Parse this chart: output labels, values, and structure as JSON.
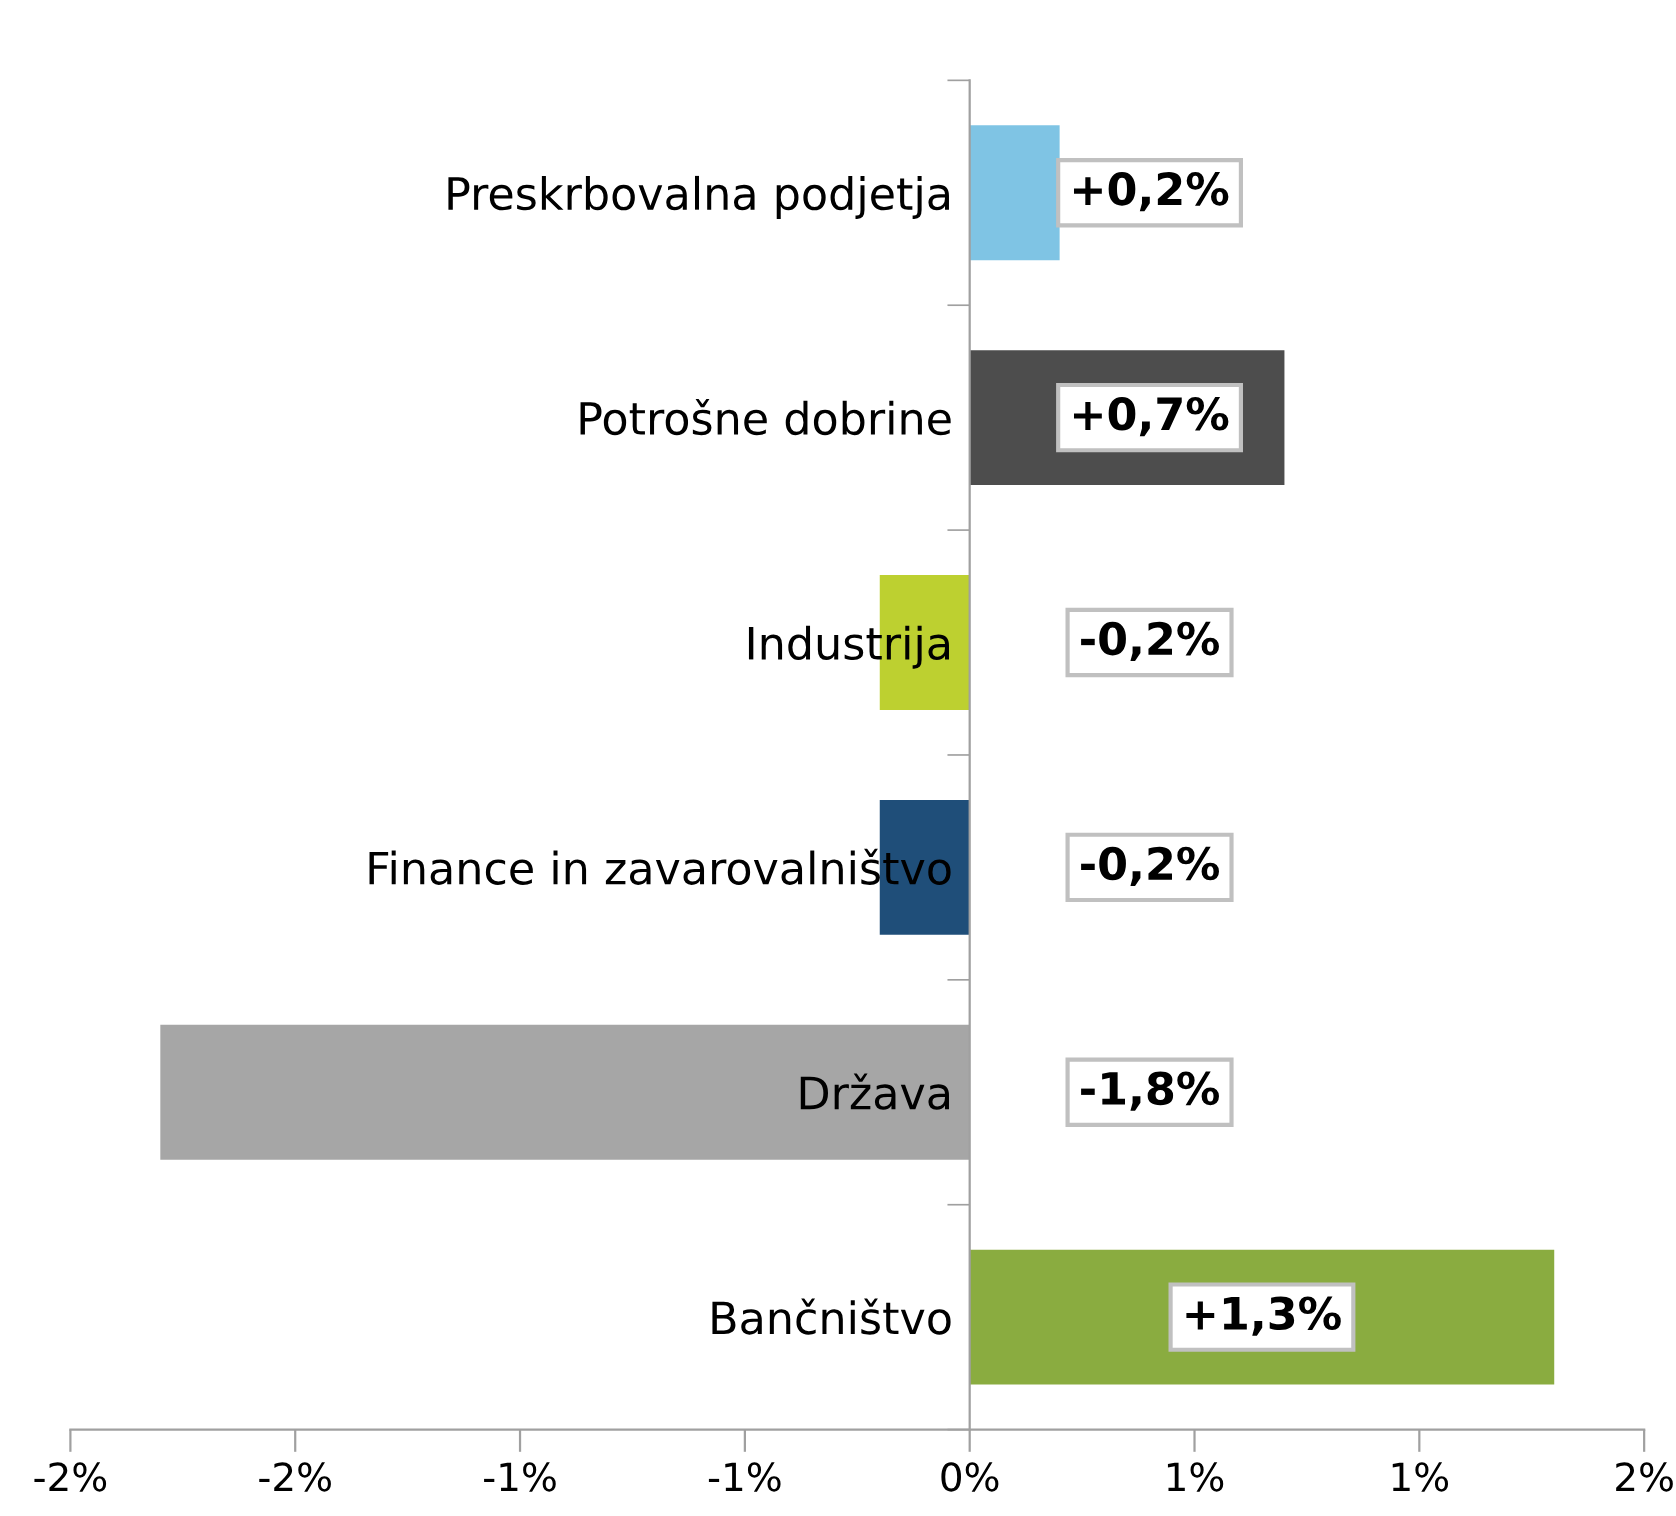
{
  "chart_data": {
    "type": "bar",
    "orientation": "horizontal",
    "categories": [
      "Preskrbovalna podjetja",
      "Potrošne dobrine",
      "Industrija",
      "Finance in zavarovalništvo",
      "Država",
      "Bančništvo"
    ],
    "values": [
      0.2,
      0.7,
      -0.2,
      -0.2,
      -1.8,
      1.3
    ],
    "colors": [
      "#7fc4e4",
      "#4d4d4d",
      "#bdd030",
      "#1f4e79",
      "#a6a6a6",
      "#8aac40"
    ],
    "value_labels": [
      "+0,2%",
      "+0,7%",
      "-0,2%",
      "-0,2%",
      "-1,8%",
      "+1,3%"
    ],
    "xlim": [
      -2,
      1.5
    ],
    "xticks": [
      {
        "value": -2,
        "label": "-2%"
      },
      {
        "value": -1.5,
        "label": "-2%"
      },
      {
        "value": -1,
        "label": "-1%"
      },
      {
        "value": -0.5,
        "label": "-1%"
      },
      {
        "value": 0,
        "label": "0%"
      },
      {
        "value": 0.5,
        "label": "1%"
      },
      {
        "value": 1,
        "label": "1%"
      },
      {
        "value": 1.5,
        "label": "2%"
      }
    ],
    "grid": false,
    "legend": false
  }
}
